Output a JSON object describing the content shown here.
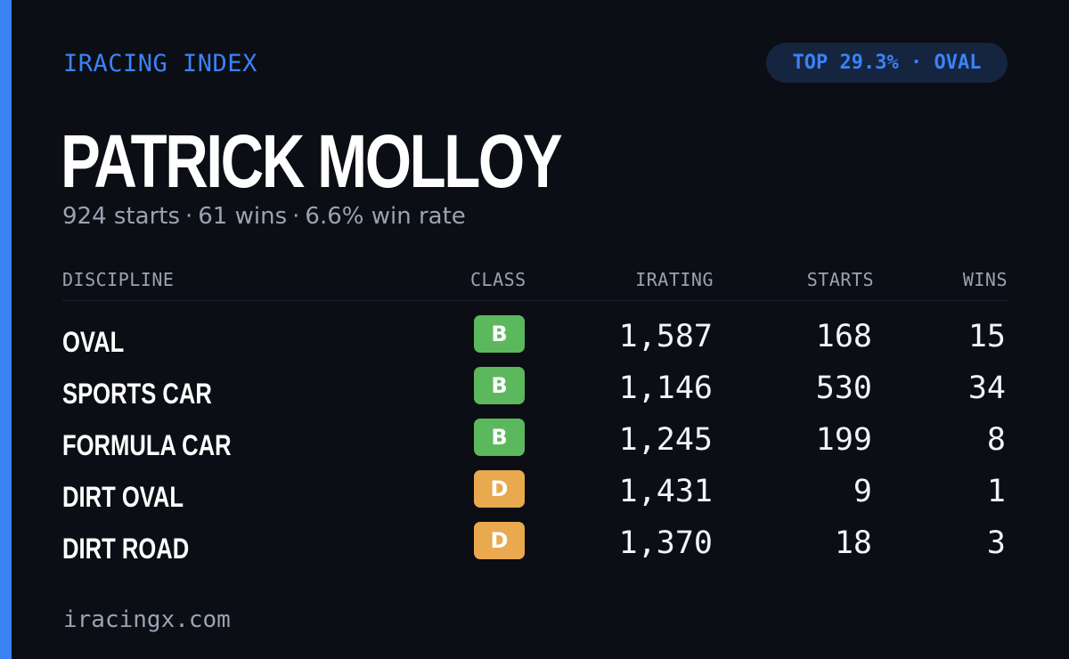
{
  "brand": "IRACING INDEX",
  "badge_pill": "TOP 29.3% · OVAL",
  "driver": {
    "name": "PATRICK MOLLOY",
    "starts_text": "924 starts",
    "wins_text": "61 wins",
    "win_rate_text": "6.6% win rate",
    "separator": "·"
  },
  "table": {
    "headers": {
      "discipline": "DISCIPLINE",
      "class": "CLASS",
      "irating": "IRATING",
      "starts": "STARTS",
      "wins": "WINS"
    },
    "rows": [
      {
        "discipline": "OVAL",
        "class": "B",
        "class_color": "#5cb85c",
        "irating": "1,587",
        "starts": "168",
        "wins": "15"
      },
      {
        "discipline": "SPORTS CAR",
        "class": "B",
        "class_color": "#5cb85c",
        "irating": "1,146",
        "starts": "530",
        "wins": "34"
      },
      {
        "discipline": "FORMULA CAR",
        "class": "B",
        "class_color": "#5cb85c",
        "irating": "1,245",
        "starts": "199",
        "wins": "8"
      },
      {
        "discipline": "DIRT OVAL",
        "class": "D",
        "class_color": "#e9a94f",
        "irating": "1,431",
        "starts": "9",
        "wins": "1"
      },
      {
        "discipline": "DIRT ROAD",
        "class": "D",
        "class_color": "#e9a94f",
        "irating": "1,370",
        "starts": "18",
        "wins": "3"
      }
    ]
  },
  "footer": "iracingx.com",
  "colors": {
    "accent": "#3b82f6",
    "background": "#0b0e14",
    "pill_background": "#152540",
    "muted_text": "#9aa3b2"
  }
}
